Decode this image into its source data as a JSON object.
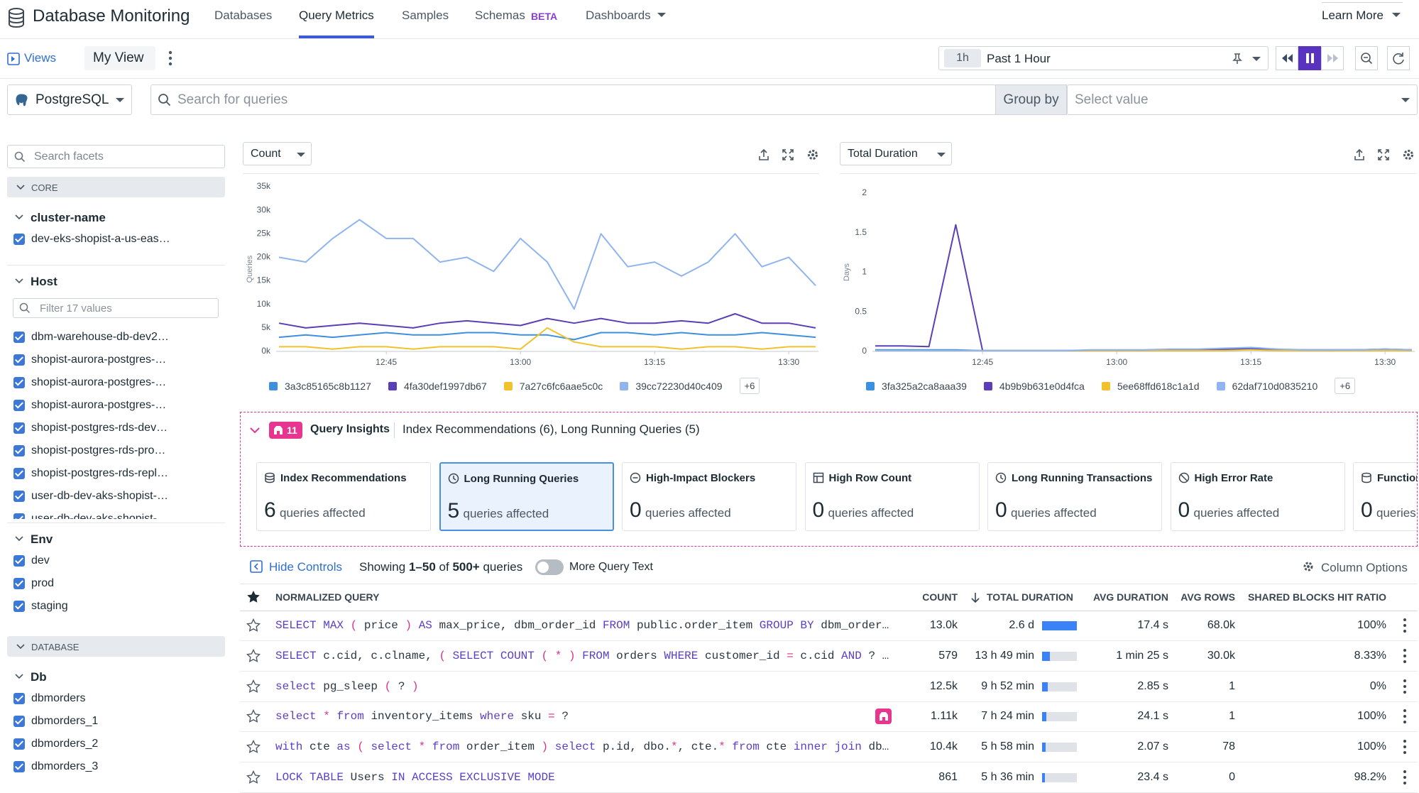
{
  "header": {
    "title": "Database Monitoring",
    "nav": [
      "Databases",
      "Query Metrics",
      "Samples",
      "Schemas",
      "Dashboards"
    ],
    "badge": "BETA",
    "learn_more": "Learn More"
  },
  "toolbar": {
    "views": "Views",
    "view_name": "My View",
    "time_short": "1h",
    "time_range": "Past 1 Hour"
  },
  "search": {
    "database": "PostgreSQL",
    "placeholder": "Search for queries",
    "group_by": "Group by",
    "group_placeholder": "Select value"
  },
  "facets": {
    "search_placeholder": "Search facets",
    "sections": [
      {
        "title": "CORE",
        "groups": [
          {
            "name": "cluster-name",
            "items": [
              "dev-eks-shopist-a-us-eas…"
            ]
          },
          {
            "name": "Host",
            "filter": "Filter 17 values",
            "items": [
              "dbm-warehouse-db-dev2…",
              "shopist-aurora-postgres-…",
              "shopist-aurora-postgres-…",
              "shopist-aurora-postgres-…",
              "shopist-postgres-rds-dev…",
              "shopist-postgres-rds-pro…",
              "shopist-postgres-rds-repl…",
              "user-db-dev-aks-shopist-…",
              "user-db-dev-aks-shopist-…"
            ]
          },
          {
            "name": "Env",
            "items": [
              "dev",
              "prod",
              "staging"
            ]
          }
        ]
      },
      {
        "title": "DATABASE",
        "groups": [
          {
            "name": "Db",
            "items": [
              "dbmorders",
              "dbmorders_1",
              "dbmorders_2",
              "dbmorders_3"
            ]
          }
        ]
      }
    ]
  },
  "charts": [
    {
      "type": "line",
      "metric": "Count",
      "y_label": "Queries",
      "grid": false,
      "x": [
        "12:33",
        "12:36",
        "12:39",
        "12:42",
        "12:45",
        "12:48",
        "12:51",
        "12:54",
        "12:57",
        "13:00",
        "13:03",
        "13:06",
        "13:09",
        "13:12",
        "13:15",
        "13:18",
        "13:21",
        "13:24",
        "13:27",
        "13:30",
        "13:33"
      ],
      "xticks": [
        "12:45",
        "13:00",
        "13:15",
        "13:30"
      ],
      "ylim": [
        0,
        35000
      ],
      "yticks": [
        {
          "value": 0,
          "label": "0k"
        },
        {
          "value": 5000,
          "label": "5k"
        },
        {
          "value": 10000,
          "label": "10k"
        },
        {
          "value": 15000,
          "label": "15k"
        },
        {
          "value": 20000,
          "label": "20k"
        },
        {
          "value": 25000,
          "label": "25k"
        },
        {
          "value": 30000,
          "label": "30k"
        },
        {
          "value": 35000,
          "label": "35k"
        }
      ],
      "series": [
        {
          "name": "3a3c85165c8b1127",
          "color": "#3d8fe0",
          "values": [
            3000,
            3500,
            3000,
            3500,
            4000,
            3500,
            3500,
            4000,
            4000,
            3500,
            3500,
            2500,
            4000,
            4000,
            3500,
            4000,
            3500,
            3500,
            4000,
            3500,
            3000
          ]
        },
        {
          "name": "4fa30def1997db67",
          "color": "#5b3fb5",
          "values": [
            6000,
            5000,
            5500,
            6000,
            5500,
            5000,
            6000,
            6500,
            6000,
            5500,
            7000,
            6000,
            7000,
            6000,
            6000,
            6500,
            6000,
            8000,
            6000,
            6000,
            5000
          ]
        },
        {
          "name": "7a27c6fc6aae5c0c",
          "color": "#f0c22e",
          "values": [
            1000,
            1000,
            500,
            1000,
            1000,
            500,
            1000,
            1000,
            1000,
            500,
            5000,
            2000,
            1000,
            1000,
            1000,
            500,
            1000,
            1000,
            500,
            1000,
            1000
          ]
        },
        {
          "name": "39cc72230d40c409",
          "color": "#8fb4ee",
          "values": [
            20000,
            19000,
            24000,
            28000,
            24000,
            24000,
            19000,
            20000,
            17000,
            24000,
            19000,
            9000,
            25000,
            18000,
            19000,
            16000,
            19000,
            25000,
            18000,
            20000,
            14000
          ]
        }
      ],
      "more": "+6"
    },
    {
      "type": "line",
      "metric": "Total Duration",
      "y_label": "Days",
      "grid": false,
      "x": [
        "12:33",
        "12:36",
        "12:39",
        "12:42",
        "12:45",
        "12:48",
        "12:51",
        "12:54",
        "12:57",
        "13:00",
        "13:03",
        "13:06",
        "13:09",
        "13:12",
        "13:15",
        "13:18",
        "13:21",
        "13:24",
        "13:27",
        "13:30",
        "13:33"
      ],
      "xticks": [
        "12:45",
        "13:00",
        "13:15",
        "13:30"
      ],
      "ylim": [
        0,
        2
      ],
      "yticks": [
        0,
        0.5,
        1,
        1.5,
        2
      ],
      "series": [
        {
          "name": "3fa325a2ca8aaa39",
          "color": "#3d8fe0",
          "values": [
            0.02,
            0.02,
            0.02,
            0.02,
            0.01,
            0.01,
            0.01,
            0.01,
            0.01,
            0.01,
            0.01,
            0.01,
            0.01,
            0.02,
            0.03,
            0.02,
            0.01,
            0.01,
            0.02,
            0.02,
            0.01
          ]
        },
        {
          "name": "4b9b9b631e0d4fca",
          "color": "#5b3fb5",
          "values": [
            0.07,
            0.07,
            0.06,
            1.6,
            0.01,
            0.01,
            0.01,
            0.01,
            0.01,
            0.01,
            0.01,
            0.02,
            0.02,
            0.03,
            0.04,
            0.02,
            0.02,
            0.02,
            0.02,
            0.03,
            0.02
          ]
        },
        {
          "name": "5ee68ffd618c1a1d",
          "color": "#f0c22e",
          "values": [
            0.01,
            0.01,
            0.01,
            0.01,
            0.01,
            0.01,
            0.01,
            0.01,
            0.01,
            0.01,
            0.01,
            0.01,
            0.01,
            0.01,
            0.02,
            0.01,
            0.01,
            0.01,
            0.01,
            0.01,
            0.01
          ]
        },
        {
          "name": "62daf710d0835210",
          "color": "#8fb4ee",
          "values": [
            0.01,
            0.01,
            0.01,
            0.01,
            0.01,
            0.01,
            0.01,
            0.01,
            0.02,
            0.02,
            0.02,
            0.03,
            0.03,
            0.04,
            0.05,
            0.03,
            0.02,
            0.02,
            0.02,
            0.03,
            0.02
          ]
        }
      ],
      "more": "+6"
    }
  ],
  "insights": {
    "count": 11,
    "title": "Query Insights",
    "summary": "Index Recommendations (6), Long Running Queries (5)",
    "cards": [
      {
        "title": "Index Recommendations",
        "count": 6,
        "unit": "queries affected"
      },
      {
        "title": "Long Running Queries",
        "count": 5,
        "unit": "queries affected"
      },
      {
        "title": "High-Impact Blockers",
        "count": 0,
        "unit": "queries affected"
      },
      {
        "title": "High Row Count",
        "count": 0,
        "unit": "queries affected"
      },
      {
        "title": "Long Running Transactions",
        "count": 0,
        "unit": "queries affected"
      },
      {
        "title": "High Error Rate",
        "count": 0,
        "unit": "queries affected"
      },
      {
        "title": "Functions",
        "count": 0,
        "unit": "queries affected"
      }
    ]
  },
  "controls": {
    "hide": "Hide Controls",
    "showing": "Showing",
    "range": "1–50",
    "of": "of",
    "total": "500+",
    "unit": "queries",
    "more_text": "More Query Text",
    "columns": "Column Options"
  },
  "table": {
    "columns": [
      "NORMALIZED QUERY",
      "COUNT",
      "TOTAL DURATION",
      "AVG DURATION",
      "AVG ROWS",
      "SHARED BLOCKS HIT RATIO"
    ],
    "rows": [
      {
        "query": "SELECT MAX ( price ) AS max_price, dbm_order_id FROM public.order_item GROUP BY dbm_order…",
        "count": "13.0k",
        "total_duration": {
          "value": 62.4,
          "label": "2.6 d"
        },
        "avg_duration": "17.4 s",
        "avg_rows": "68.0k",
        "hit_ratio": "100%"
      },
      {
        "query": "SELECT c.cid, c.clname, ( SELECT COUNT ( * ) FROM orders WHERE customer_id = c.cid AND ? …",
        "count": "579",
        "total_duration": {
          "value": 13.82,
          "label": "13 h 49 min"
        },
        "avg_duration": "1 min 25 s",
        "avg_rows": "30.0k",
        "hit_ratio": "8.33%"
      },
      {
        "query": "select pg_sleep ( ? )",
        "count": "12.5k",
        "total_duration": {
          "value": 9.87,
          "label": "9 h 52 min"
        },
        "avg_duration": "2.85 s",
        "avg_rows": "1",
        "hit_ratio": "0%"
      },
      {
        "query": "select * from inventory_items where sku = ?",
        "insight": true,
        "count": "1.11k",
        "total_duration": {
          "value": 7.4,
          "label": "7 h 24 min"
        },
        "avg_duration": "24.1 s",
        "avg_rows": "1",
        "hit_ratio": "100%"
      },
      {
        "query": "with cte as ( select * from order_item ) select p.id, dbo.*, cte.* from cte inner join db…",
        "count": "10.4k",
        "total_duration": {
          "value": 5.97,
          "label": "5 h 58 min"
        },
        "avg_duration": "2.07 s",
        "avg_rows": "78",
        "hit_ratio": "100%"
      },
      {
        "query": "LOCK TABLE Users IN ACCESS EXCLUSIVE MODE",
        "count": "861",
        "total_duration": {
          "value": 5.6,
          "label": "5 h 36 min"
        },
        "avg_duration": "23.4 s",
        "avg_rows": "0",
        "hit_ratio": "98.2%"
      }
    ]
  }
}
